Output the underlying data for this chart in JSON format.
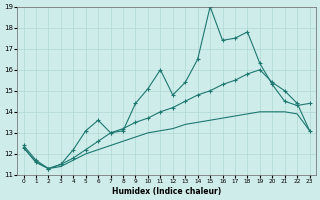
{
  "xlabel": "Humidex (Indice chaleur)",
  "xlim": [
    -0.5,
    23.5
  ],
  "ylim": [
    11,
    19
  ],
  "yticks": [
    11,
    12,
    13,
    14,
    15,
    16,
    17,
    18,
    19
  ],
  "xticks": [
    0,
    1,
    2,
    3,
    4,
    5,
    6,
    7,
    8,
    9,
    10,
    11,
    12,
    13,
    14,
    15,
    16,
    17,
    18,
    19,
    20,
    21,
    22,
    23
  ],
  "xtick_labels": [
    "0",
    "1",
    "2",
    "3",
    "4",
    "5",
    "6",
    "7",
    "8",
    "9",
    "10",
    "11",
    "12",
    "13",
    "14",
    "15",
    "16",
    "17",
    "18",
    "19",
    "20",
    "21",
    "22",
    "23"
  ],
  "background_color": "#ceecea",
  "grid_color": "#b0d8d4",
  "line_color": "#1e7870",
  "line1_x": [
    0,
    1,
    2,
    3,
    4,
    5,
    6,
    7,
    8,
    9,
    10,
    11,
    12,
    13,
    14,
    15,
    16,
    17,
    18,
    19,
    20,
    21,
    22,
    23
  ],
  "line1_y": [
    12.4,
    11.7,
    11.3,
    11.5,
    12.2,
    13.1,
    13.6,
    13.0,
    13.1,
    14.4,
    15.1,
    16.0,
    14.8,
    15.4,
    16.5,
    19.0,
    17.4,
    17.5,
    17.8,
    16.3,
    15.3,
    14.5,
    14.3,
    14.4
  ],
  "line2_x": [
    0,
    1,
    2,
    3,
    4,
    5,
    6,
    7,
    8,
    9,
    10,
    11,
    12,
    13,
    14,
    15,
    16,
    17,
    18,
    19,
    20,
    21,
    22,
    23
  ],
  "line2_y": [
    12.3,
    11.6,
    11.3,
    11.5,
    11.8,
    12.2,
    12.6,
    13.0,
    13.2,
    13.5,
    13.7,
    14.0,
    14.2,
    14.5,
    14.8,
    15.0,
    15.3,
    15.5,
    15.8,
    16.0,
    15.4,
    15.0,
    14.4,
    13.1
  ],
  "line3_x": [
    0,
    1,
    2,
    3,
    4,
    5,
    6,
    7,
    8,
    9,
    10,
    11,
    12,
    13,
    14,
    15,
    16,
    17,
    18,
    19,
    20,
    21,
    22,
    23
  ],
  "line3_y": [
    12.3,
    11.6,
    11.3,
    11.4,
    11.7,
    12.0,
    12.2,
    12.4,
    12.6,
    12.8,
    13.0,
    13.1,
    13.2,
    13.4,
    13.5,
    13.6,
    13.7,
    13.8,
    13.9,
    14.0,
    14.0,
    14.0,
    13.9,
    13.1
  ]
}
